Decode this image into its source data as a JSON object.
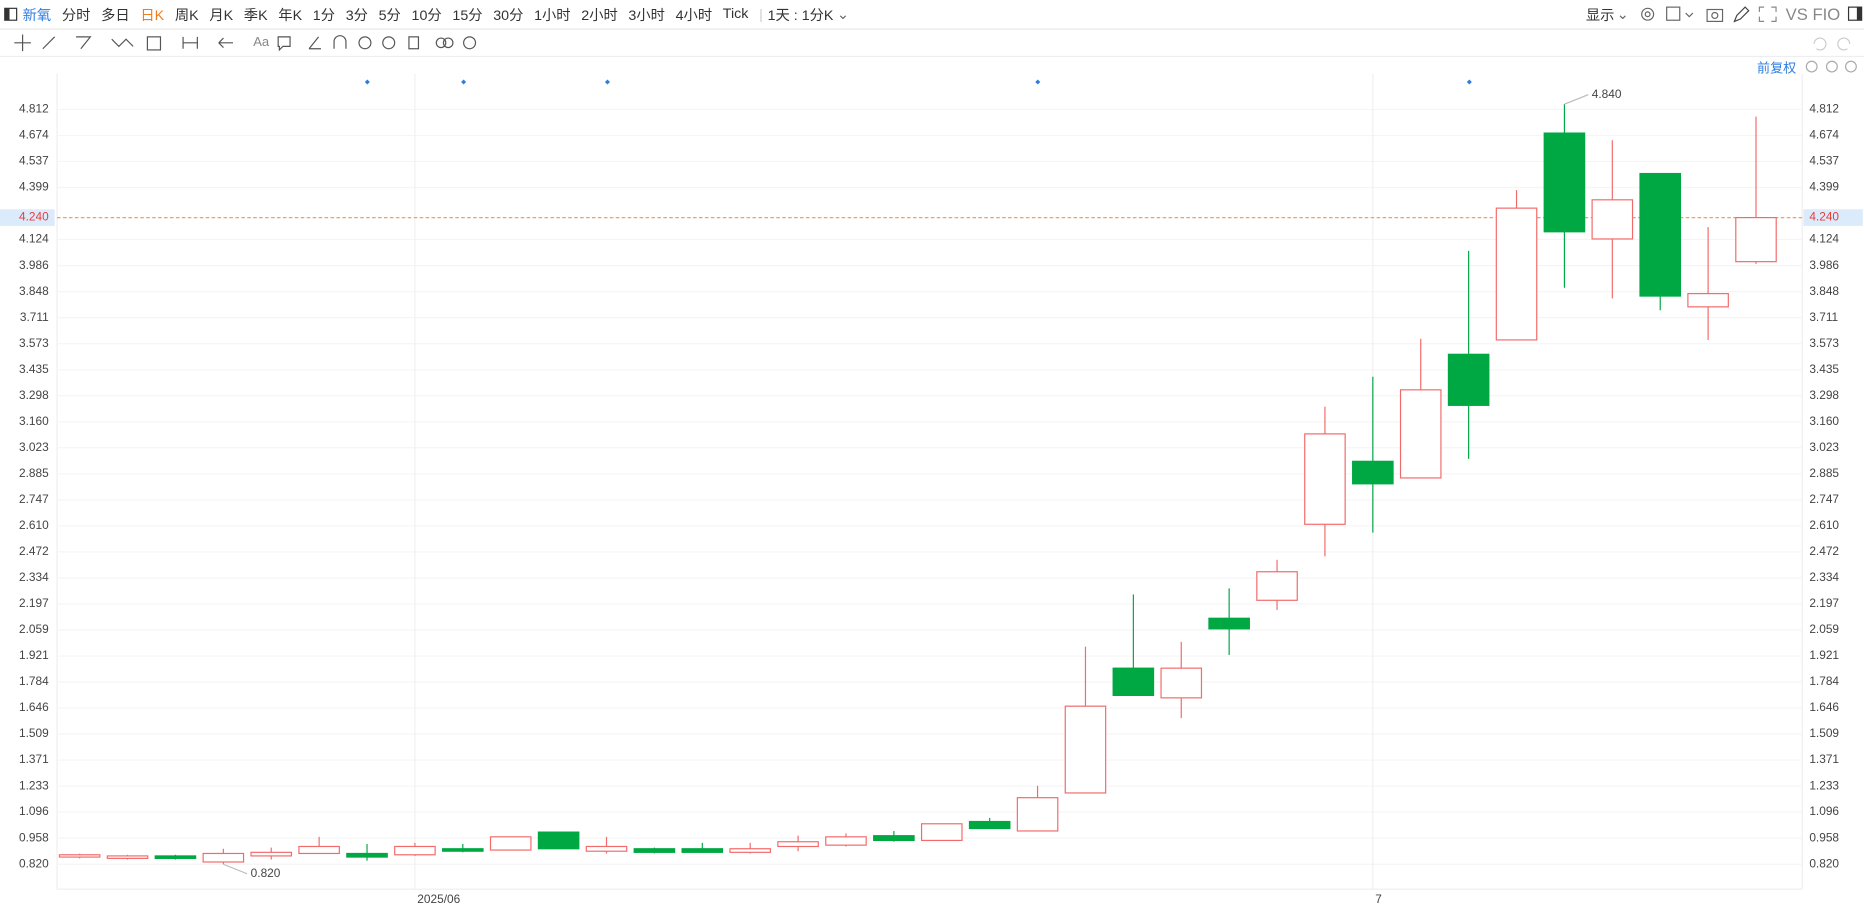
{
  "toolbar": {
    "symbol": "新氧",
    "periods": [
      "分时",
      "多日",
      "日K",
      "周K",
      "月K",
      "季K",
      "年K",
      "1分",
      "3分",
      "5分",
      "10分",
      "15分",
      "30分",
      "1小时",
      "2小时",
      "3小时",
      "4小时",
      "Tick"
    ],
    "active": 2,
    "interval": "1天 : 1分K",
    "display": "显示",
    "compare": "VS FIO",
    "adjust": "前复权"
  },
  "chart_data": {
    "type": "candlestick",
    "categories": [
      null,
      null,
      null,
      null,
      null,
      null,
      null,
      "2025/06",
      null,
      null,
      null,
      null,
      null,
      null,
      null,
      null,
      null,
      null,
      null,
      null,
      null,
      null,
      null,
      null,
      null,
      null,
      null,
      "7",
      null,
      null,
      null,
      null,
      null,
      null,
      null,
      null
    ],
    "open": [
      0.858,
      0.851,
      0.864,
      0.832,
      0.864,
      0.877,
      0.877,
      0.87,
      0.902,
      0.895,
      0.99,
      0.889,
      0.902,
      0.902,
      0.883,
      0.914,
      0.921,
      0.971,
      0.946,
      1.046,
      0.996,
      1.197,
      1.857,
      1.7,
      2.121,
      2.216,
      2.618,
      2.951,
      2.863,
      3.517,
      3.593,
      4.687,
      4.127,
      4.473,
      3.768,
      4.007
    ],
    "high": [
      0.876,
      0.87,
      0.87,
      0.902,
      0.908,
      0.965,
      0.927,
      0.933,
      0.927,
      0.965,
      0.99,
      0.965,
      0.908,
      0.933,
      0.933,
      0.971,
      0.983,
      0.996,
      1.034,
      1.065,
      1.235,
      1.971,
      2.247,
      1.996,
      2.279,
      2.43,
      3.24,
      3.398,
      3.599,
      4.064,
      4.385,
      4.84,
      4.649,
      4.473,
      4.19,
      4.774
    ],
    "low": [
      0.851,
      0.845,
      0.845,
      0.82,
      0.845,
      0.877,
      0.839,
      0.864,
      0.883,
      0.895,
      0.902,
      0.877,
      0.877,
      0.883,
      0.877,
      0.889,
      0.914,
      0.939,
      0.946,
      1.009,
      0.996,
      1.197,
      1.713,
      1.593,
      1.927,
      2.165,
      2.448,
      2.574,
      2.863,
      2.964,
      3.593,
      3.869,
      3.813,
      3.75,
      3.593,
      3.995
    ],
    "close": [
      0.87,
      0.864,
      0.851,
      0.877,
      0.883,
      0.914,
      0.858,
      0.914,
      0.889,
      0.965,
      0.902,
      0.914,
      0.883,
      0.883,
      0.902,
      0.939,
      0.965,
      0.946,
      1.034,
      1.009,
      1.172,
      1.656,
      1.713,
      1.857,
      2.065,
      2.367,
      3.096,
      2.832,
      3.329,
      3.247,
      4.29,
      4.165,
      4.334,
      3.825,
      3.838,
      4.24
    ],
    "up_color": "#f26b6b",
    "down_color": "#00a843",
    "ylim": [
      0.688,
      5.001
    ],
    "yticks": [
      {
        "value": 0.82,
        "label": "0.820"
      },
      0.958,
      1.096,
      1.233,
      1.371,
      1.509,
      1.646,
      1.784,
      1.921,
      2.059,
      2.197,
      2.334,
      2.472,
      {
        "value": 2.61,
        "label": "2.610"
      },
      2.747,
      2.885,
      3.023,
      {
        "value": 3.16,
        "label": "3.160"
      },
      3.298,
      3.435,
      3.573,
      3.711,
      3.848,
      3.986,
      4.124,
      4.399,
      4.537,
      4.674,
      4.812
    ],
    "grid": true,
    "last_price": {
      "value": 4.24,
      "label": "4.240"
    },
    "max_label": {
      "value": 4.84,
      "label": "4.840"
    },
    "min_label": {
      "value": 0.82,
      "label": "0.820"
    }
  }
}
